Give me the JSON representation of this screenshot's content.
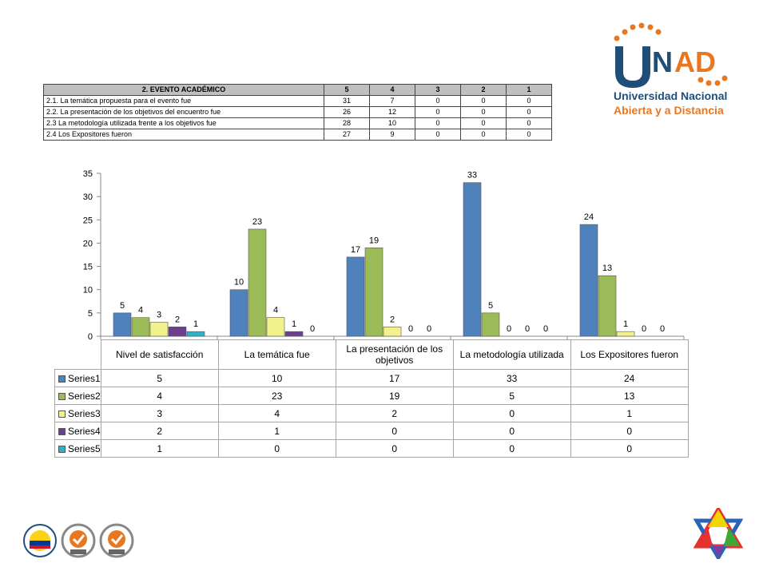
{
  "logo": {
    "letters": "UNAD",
    "line1": "Universidad Nacional",
    "line2": "Abierta y a Distancia",
    "colors": {
      "blue": "#1f4e79",
      "orange": "#e87722"
    }
  },
  "top_table": {
    "headers": [
      "2. EVENTO  ACADÉMICO",
      "5",
      "4",
      "3",
      "2",
      "1"
    ],
    "rows": [
      [
        "2.1. La temática propuesta para  el evento fue",
        "31",
        "7",
        "0",
        "0",
        "0"
      ],
      [
        "2.2. La presentación de los objetivos del encuentro fue",
        "26",
        "12",
        "0",
        "0",
        "0"
      ],
      [
        "2.3 La metodología utilizada frente a los objetivos  fue",
        "28",
        "10",
        "0",
        "0",
        "0"
      ],
      [
        "2.4 Los Expositores fueron",
        "27",
        "9",
        "0",
        "0",
        "0"
      ]
    ]
  },
  "chart_data": {
    "type": "bar",
    "categories": [
      "Nivel de satisfacción",
      "La temática fue",
      "La presentación de los objetivos",
      "La metodología  utilizada",
      "Los Expositores  fueron"
    ],
    "series": [
      {
        "name": "Series1",
        "color": "#4f81bd",
        "values": [
          5,
          10,
          17,
          33,
          24
        ]
      },
      {
        "name": "Series2",
        "color": "#9bbb59",
        "values": [
          4,
          23,
          19,
          5,
          13
        ]
      },
      {
        "name": "Series3",
        "color": "#f2f28c",
        "values": [
          3,
          4,
          2,
          0,
          1
        ]
      },
      {
        "name": "Series4",
        "color": "#6b3f8c",
        "values": [
          2,
          1,
          0,
          0,
          0
        ]
      },
      {
        "name": "Series5",
        "color": "#31b0c6",
        "values": [
          1,
          0,
          0,
          0,
          0
        ]
      }
    ],
    "ylim": [
      0,
      35
    ],
    "yticks": [
      0,
      5,
      10,
      15,
      20,
      25,
      30,
      35
    ],
    "data_labels": true,
    "legend": "data-table"
  },
  "bottom_logos": [
    "colombia-seal-icon",
    "sgs-certification-icon",
    "sgs-certification-icon"
  ],
  "star_icon": "multicolor-star-icon"
}
